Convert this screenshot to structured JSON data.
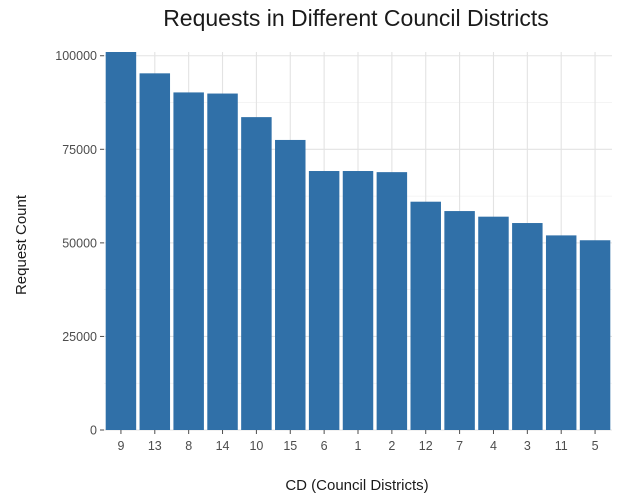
{
  "chart_data": {
    "type": "bar",
    "title": "Requests in Different Council Districts",
    "xlabel": "CD (Council Districts)",
    "ylabel": "Request Count",
    "categories": [
      "9",
      "13",
      "8",
      "14",
      "10",
      "15",
      "6",
      "1",
      "2",
      "12",
      "7",
      "4",
      "3",
      "11",
      "5"
    ],
    "values": [
      101000,
      95300,
      90200,
      89900,
      83600,
      77500,
      69200,
      69200,
      68900,
      61000,
      58500,
      57000,
      55300,
      52000,
      50700
    ],
    "ylim": [
      0,
      101000
    ],
    "yticks": [
      0,
      25000,
      50000,
      75000,
      100000
    ],
    "ytick_labels": [
      "0",
      "25000",
      "50000",
      "75000",
      "100000"
    ],
    "bar_color": "#3070a8",
    "grid": true,
    "legend": false
  }
}
